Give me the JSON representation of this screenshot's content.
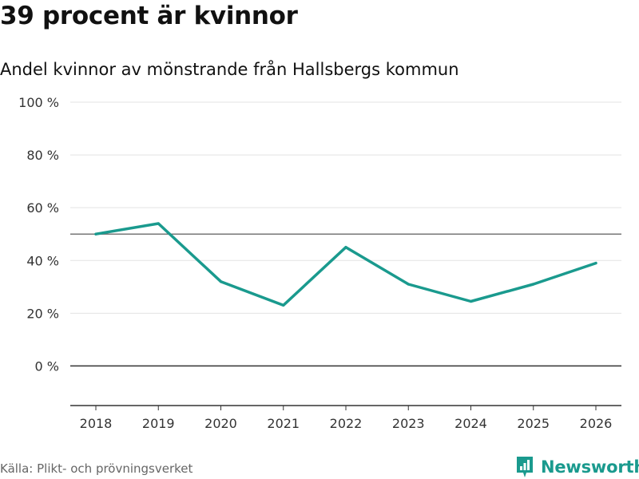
{
  "header": {
    "title": "39 procent är kvinnor",
    "subtitle": "Andel kvinnor av mönstrande från Hallsbergs kommun"
  },
  "footer": {
    "source": "Källa: Plikt- och prövningsverket",
    "brand": "Newsworthy"
  },
  "colors": {
    "line": "#1a9a8e",
    "reference": "#777777",
    "zero": "#333333",
    "grid": "#e3e3e3",
    "brand": "#1a9a8e"
  },
  "chart_data": {
    "type": "line",
    "title": "39 procent är kvinnor",
    "subtitle": "Andel kvinnor av mönstrande från Hallsbergs kommun",
    "xlabel": "",
    "ylabel": "",
    "categories": [
      "2018",
      "2019",
      "2020",
      "2021",
      "2022",
      "2023",
      "2024",
      "2025",
      "2026"
    ],
    "series": [
      {
        "name": "Andel kvinnor",
        "values": [
          50,
          54,
          32,
          23,
          45,
          31,
          24.5,
          31,
          39
        ]
      }
    ],
    "y_ticks": [
      0,
      20,
      40,
      60,
      80,
      100
    ],
    "y_tick_labels": [
      "0 %",
      "20 %",
      "40 %",
      "60 %",
      "80 %",
      "100 %"
    ],
    "ylim": [
      -15,
      100
    ],
    "reference_line": 50,
    "grid": true,
    "legend": "none"
  }
}
